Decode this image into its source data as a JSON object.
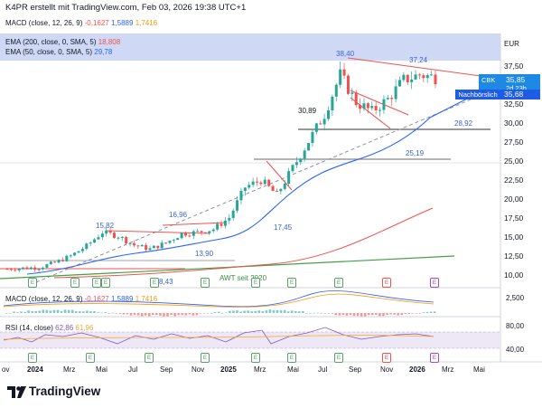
{
  "header": {
    "title": "K4PR erstellt mit TradingView.com, Feb 03, 2026 19:38 UTC+1"
  },
  "macd_top_row": {
    "label": "MACD (close, 12, 26, 9)",
    "v1": "-0,1627",
    "v2": "1,5889",
    "v3": "1,7416"
  },
  "legend": {
    "ema200_label": "EMA (200, close, 0, SMA, 5)",
    "ema200_value": "18,808",
    "ema50_label": "EMA (50, close, 0, SMA, 5)",
    "ema50_value": "29,78"
  },
  "y_axis": {
    "currency": "EUR",
    "ticks": [
      "37,50",
      "35,00",
      "32,50",
      "30,00",
      "27,50",
      "25,00",
      "22,50",
      "20,00",
      "17,50",
      "15,00",
      "12,50",
      "10,00"
    ]
  },
  "price_tags": {
    "symbol": "CBK",
    "price": "35,85",
    "countdown": "2d 23h",
    "after_hours_label": "Nachbörslich",
    "after_hours_price": "35,68"
  },
  "chart_annotations": {
    "labels": [
      "38,40",
      "37,24",
      "30,89",
      "28,92",
      "25,19",
      "16,96",
      "15,82",
      "17,45",
      "13,90",
      "8,43"
    ],
    "awt_label": "AWT seit 2020"
  },
  "earnings_badge_letter": "E",
  "macd_pane": {
    "label": "MACD (close, 12, 26, 9)",
    "v1": "-0,1627",
    "v2": "1,5889",
    "v3": "1,7416",
    "axis_tick": "2,500"
  },
  "rsi_pane": {
    "label": "RSI (14, close)",
    "v1": "62,86",
    "v2": "61,96",
    "axis_ticks": [
      "80,00",
      "40,00"
    ]
  },
  "x_axis": {
    "ticks": [
      "ov",
      "2024",
      "Mrz",
      "Mai",
      "Jul",
      "Sep",
      "Nov",
      "2025",
      "Mrz",
      "Mai",
      "Jul",
      "Sep",
      "Nov",
      "2026",
      "Mrz",
      "Mai"
    ]
  },
  "brand": {
    "name": "TradingView"
  },
  "colors": {
    "bull": "#26a69a",
    "bear": "#ef5350",
    "ema50": "#2962ff",
    "ema200": "#ef5350",
    "accent": "#1e88e5"
  },
  "chart_data": {
    "type": "candlestick",
    "symbol": "CBK",
    "currency": "EUR",
    "ylim": [
      8,
      41
    ],
    "x": [
      "2023-11",
      "2023-12",
      "2024-01",
      "2024-02",
      "2024-03",
      "2024-04",
      "2024-05",
      "2024-06",
      "2024-07",
      "2024-08",
      "2024-09",
      "2024-10",
      "2024-11",
      "2024-12",
      "2025-01",
      "2025-02",
      "2025-03",
      "2025-04",
      "2025-05",
      "2025-06",
      "2025-07",
      "2025-08",
      "2025-09",
      "2025-10",
      "2025-11",
      "2025-12",
      "2026-01",
      "2026-02"
    ],
    "close_approx": [
      10.8,
      10.9,
      11.0,
      11.6,
      12.5,
      13.8,
      15.6,
      15.1,
      13.9,
      13.4,
      14.2,
      15.4,
      15.6,
      16.0,
      17.5,
      21.5,
      22.4,
      20.5,
      24.0,
      27.5,
      31.0,
      36.2,
      32.6,
      31.4,
      33.0,
      35.5,
      36.2,
      35.85
    ],
    "series": [
      {
        "name": "EMA (50, close, 0, SMA, 5)",
        "last": 29.78
      },
      {
        "name": "EMA (200, close, 0, SMA, 5)",
        "last": 18.808
      }
    ],
    "levels": [
      30.89,
      28.92,
      25.19
    ],
    "highs_annotated": [
      38.4,
      37.24
    ]
  }
}
